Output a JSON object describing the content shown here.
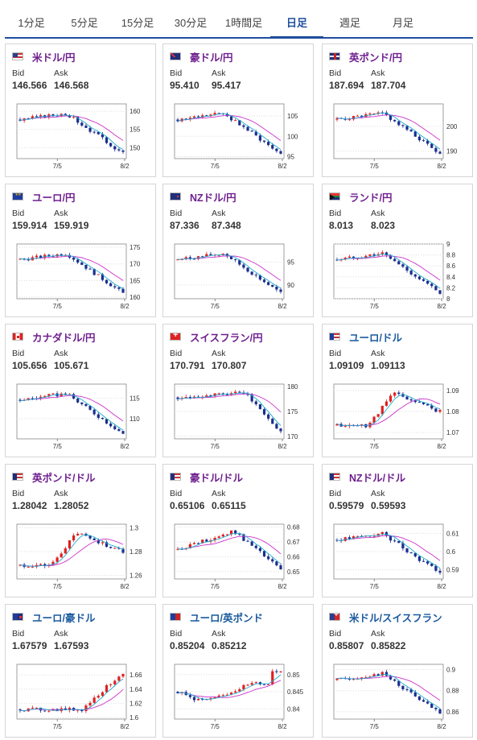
{
  "tabs": [
    {
      "label": "1分足",
      "active": false
    },
    {
      "label": "5分足",
      "active": false
    },
    {
      "label": "15分足",
      "active": false
    },
    {
      "label": "30分足",
      "active": false
    },
    {
      "label": "1時間足",
      "active": false
    },
    {
      "label": "日足",
      "active": true
    },
    {
      "label": "週足",
      "active": false
    },
    {
      "label": "月足",
      "active": false
    }
  ],
  "labels": {
    "bid": "Bid",
    "ask": "Ask"
  },
  "colors": {
    "accent": "#1e4e9e",
    "pair_jpy": "#6f1f8f",
    "pair_cross": "#1a5a9e",
    "up": "#e02020",
    "down": "#1a2f8f",
    "ma_long": "#cc33cc",
    "ma_short": "#22aacc"
  },
  "cards": [
    {
      "pair": "米ドル/円",
      "flag": "us",
      "color": "jpy",
      "bid": "146.566",
      "ask": "146.568",
      "chart": {
        "xlabels": [
          "7/5",
          "8/2"
        ],
        "yticks": [
          "160",
          "155",
          "150"
        ],
        "ylim": [
          147,
          162
        ],
        "trend": "down"
      }
    },
    {
      "pair": "豪ドル/円",
      "flag": "au",
      "color": "jpy",
      "bid": "95.410",
      "ask": "95.417",
      "chart": {
        "xlabels": [
          "7/5",
          "8/2"
        ],
        "yticks": [
          "105",
          "100",
          "95"
        ],
        "ylim": [
          94.5,
          108
        ],
        "trend": "down"
      }
    },
    {
      "pair": "英ポンド/円",
      "flag": "gb",
      "color": "jpy",
      "bid": "187.694",
      "ask": "187.704",
      "chart": {
        "xlabels": [
          "7/5",
          "8/2"
        ],
        "yticks": [
          "200",
          "190"
        ],
        "ylim": [
          187,
          209
        ],
        "trend": "down"
      }
    },
    {
      "pair": "ユーロ/円",
      "flag": "eu",
      "color": "jpy",
      "bid": "159.914",
      "ask": "159.919",
      "chart": {
        "xlabels": [
          "7/5",
          "8/2"
        ],
        "yticks": [
          "175",
          "170",
          "165",
          "160"
        ],
        "ylim": [
          159.5,
          176
        ],
        "trend": "down"
      }
    },
    {
      "pair": "NZドル/円",
      "flag": "nz",
      "color": "jpy",
      "bid": "87.336",
      "ask": "87.348",
      "chart": {
        "xlabels": [
          "7/5",
          "8/2"
        ],
        "yticks": [
          "95",
          "90"
        ],
        "ylim": [
          87,
          99
        ],
        "trend": "down"
      }
    },
    {
      "pair": "ランド/円",
      "flag": "za",
      "color": "jpy",
      "bid": "8.013",
      "ask": "8.023",
      "chart": {
        "xlabels": [
          "7/5",
          "8/2"
        ],
        "yticks": [
          "9",
          "8.8",
          "8.6",
          "8.4",
          "8.2",
          "8"
        ],
        "ylim": [
          8.0,
          9.0
        ],
        "trend": "down"
      }
    },
    {
      "pair": "カナダドル/円",
      "flag": "ca",
      "color": "jpy",
      "bid": "105.656",
      "ask": "105.671",
      "chart": {
        "xlabels": [
          "7/5",
          "8/2"
        ],
        "yticks": [
          "115",
          "110"
        ],
        "ylim": [
          105,
          118.5
        ],
        "trend": "down"
      }
    },
    {
      "pair": "スイスフラン/円",
      "flag": "ch",
      "color": "jpy",
      "bid": "170.791",
      "ask": "170.807",
      "chart": {
        "xlabels": [
          "7/5",
          "8/2"
        ],
        "yticks": [
          "180",
          "175",
          "170"
        ],
        "ylim": [
          169.5,
          180.5
        ],
        "trend": "down_late"
      }
    },
    {
      "pair": "ユーロ/ドル",
      "flag": "eu_us",
      "color": "cross",
      "bid": "1.09109",
      "ask": "1.09113",
      "chart": {
        "xlabels": [
          "7/5",
          "8/2"
        ],
        "yticks": [
          "1.09",
          "1.08",
          "1.07"
        ],
        "ylim": [
          1.067,
          1.093
        ],
        "trend": "up_mid"
      }
    },
    {
      "pair": "英ポンド/ドル",
      "flag": "gb_us",
      "color": "jpy",
      "bid": "1.28042",
      "ask": "1.28052",
      "chart": {
        "xlabels": [
          "7/5",
          "8/2"
        ],
        "yticks": [
          "1.3",
          "1.28",
          "1.26"
        ],
        "ylim": [
          1.257,
          1.303
        ],
        "trend": "up_mid"
      }
    },
    {
      "pair": "豪ドル/ドル",
      "flag": "au_us",
      "color": "jpy",
      "bid": "0.65106",
      "ask": "0.65115",
      "chart": {
        "xlabels": [
          "7/5",
          "8/2"
        ],
        "yticks": [
          "0.68",
          "0.67",
          "0.66",
          "0.65"
        ],
        "ylim": [
          0.645,
          0.682
        ],
        "trend": "hump"
      }
    },
    {
      "pair": "NZドル/ドル",
      "flag": "nz_us",
      "color": "jpy",
      "bid": "0.59579",
      "ask": "0.59593",
      "chart": {
        "xlabels": [
          "7/5",
          "8/2"
        ],
        "yticks": [
          "0.61",
          "0.6",
          "0.59"
        ],
        "ylim": [
          0.585,
          0.615
        ],
        "trend": "down"
      }
    },
    {
      "pair": "ユーロ/豪ドル",
      "flag": "eu_au",
      "color": "cross",
      "bid": "1.67579",
      "ask": "1.67593",
      "chart": {
        "xlabels": [
          "7/5",
          "8/2"
        ],
        "yticks": [
          "1.66",
          "1.64",
          "1.62",
          "1.6"
        ],
        "ylim": [
          1.598,
          1.675
        ],
        "trend": "up_late"
      }
    },
    {
      "pair": "ユーロ/英ポンド",
      "flag": "eu_gb",
      "color": "cross",
      "bid": "0.85204",
      "ask": "0.85212",
      "chart": {
        "xlabels": [
          "7/5",
          "8/2"
        ],
        "yticks": [
          "0.85",
          "0.845",
          "0.84"
        ],
        "ylim": [
          0.837,
          0.853
        ],
        "trend": "flat_spike"
      }
    },
    {
      "pair": "米ドル/スイスフラン",
      "flag": "us_ch",
      "color": "cross",
      "bid": "0.85807",
      "ask": "0.85822",
      "chart": {
        "xlabels": [
          "7/5",
          "8/2"
        ],
        "yticks": [
          "0.9",
          "0.88",
          "0.86"
        ],
        "ylim": [
          0.853,
          0.905
        ],
        "trend": "down"
      }
    }
  ]
}
